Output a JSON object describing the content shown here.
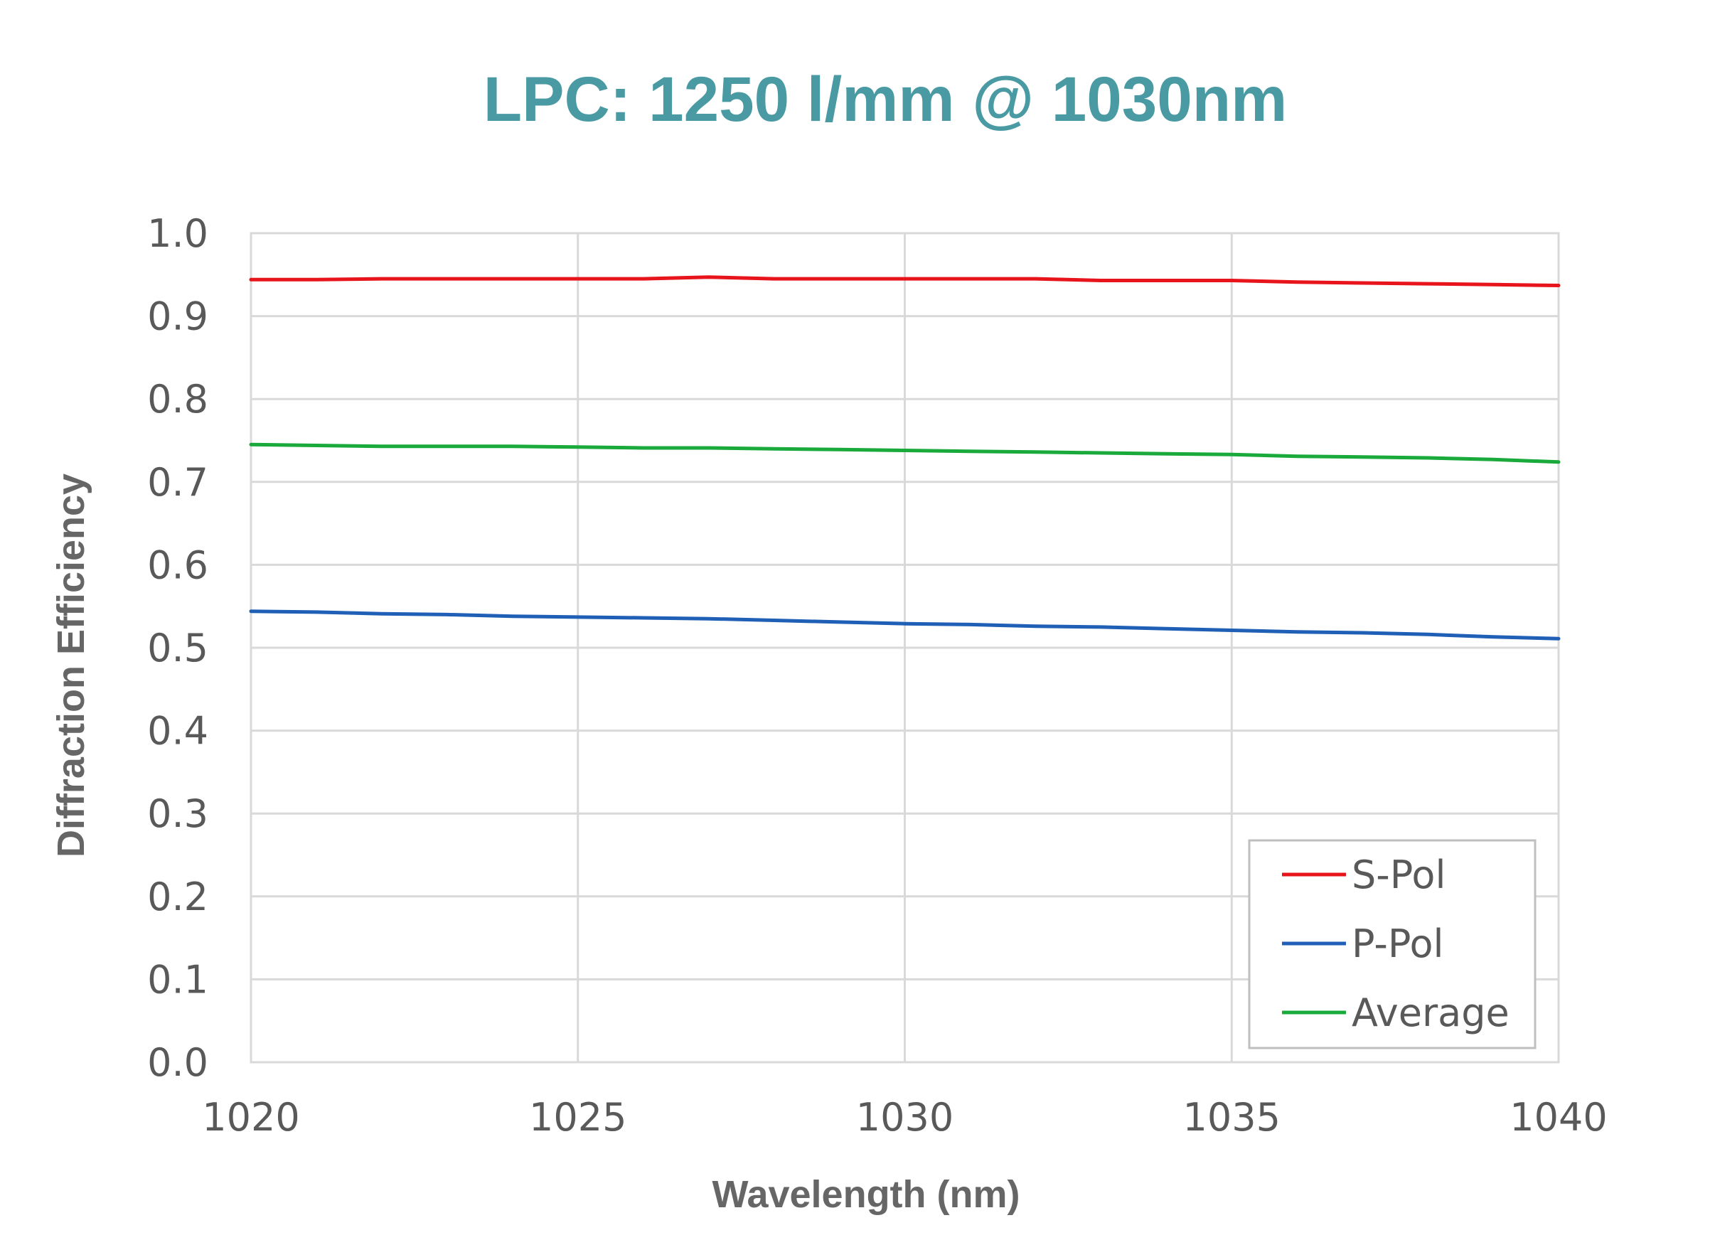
{
  "chart_data": {
    "type": "line",
    "title": "LPC: 1250 l/mm @ 1030nm",
    "xlabel": "Wavelength (nm)",
    "ylabel": "Diffraction Efficiency",
    "xlim": [
      1020,
      1040
    ],
    "ylim": [
      0.0,
      1.0
    ],
    "x_ticks": [
      "1020",
      "1025",
      "1030",
      "1035",
      "1040"
    ],
    "y_ticks": [
      "0.0",
      "0.1",
      "0.2",
      "0.3",
      "0.4",
      "0.5",
      "0.6",
      "0.7",
      "0.8",
      "0.9",
      "1.0"
    ],
    "grid": true,
    "legend_position": "bottom-right",
    "x": [
      1020,
      1021,
      1022,
      1023,
      1024,
      1025,
      1026,
      1027,
      1028,
      1029,
      1030,
      1031,
      1032,
      1033,
      1034,
      1035,
      1036,
      1037,
      1038,
      1039,
      1040
    ],
    "series": [
      {
        "name": "S-Pol",
        "color": "#e8141b",
        "values": [
          0.944,
          0.944,
          0.945,
          0.945,
          0.945,
          0.945,
          0.945,
          0.947,
          0.945,
          0.945,
          0.945,
          0.945,
          0.945,
          0.943,
          0.943,
          0.943,
          0.941,
          0.94,
          0.939,
          0.938,
          0.937
        ]
      },
      {
        "name": "P-Pol",
        "color": "#1f5fb5",
        "values": [
          0.544,
          0.543,
          0.541,
          0.54,
          0.538,
          0.537,
          0.536,
          0.535,
          0.533,
          0.531,
          0.529,
          0.528,
          0.526,
          0.525,
          0.523,
          0.521,
          0.519,
          0.518,
          0.516,
          0.513,
          0.511
        ]
      },
      {
        "name": "Average",
        "color": "#1aaa3c",
        "values": [
          0.745,
          0.744,
          0.743,
          0.743,
          0.743,
          0.742,
          0.741,
          0.741,
          0.74,
          0.739,
          0.738,
          0.737,
          0.736,
          0.735,
          0.734,
          0.733,
          0.731,
          0.73,
          0.729,
          0.727,
          0.724
        ]
      }
    ]
  }
}
